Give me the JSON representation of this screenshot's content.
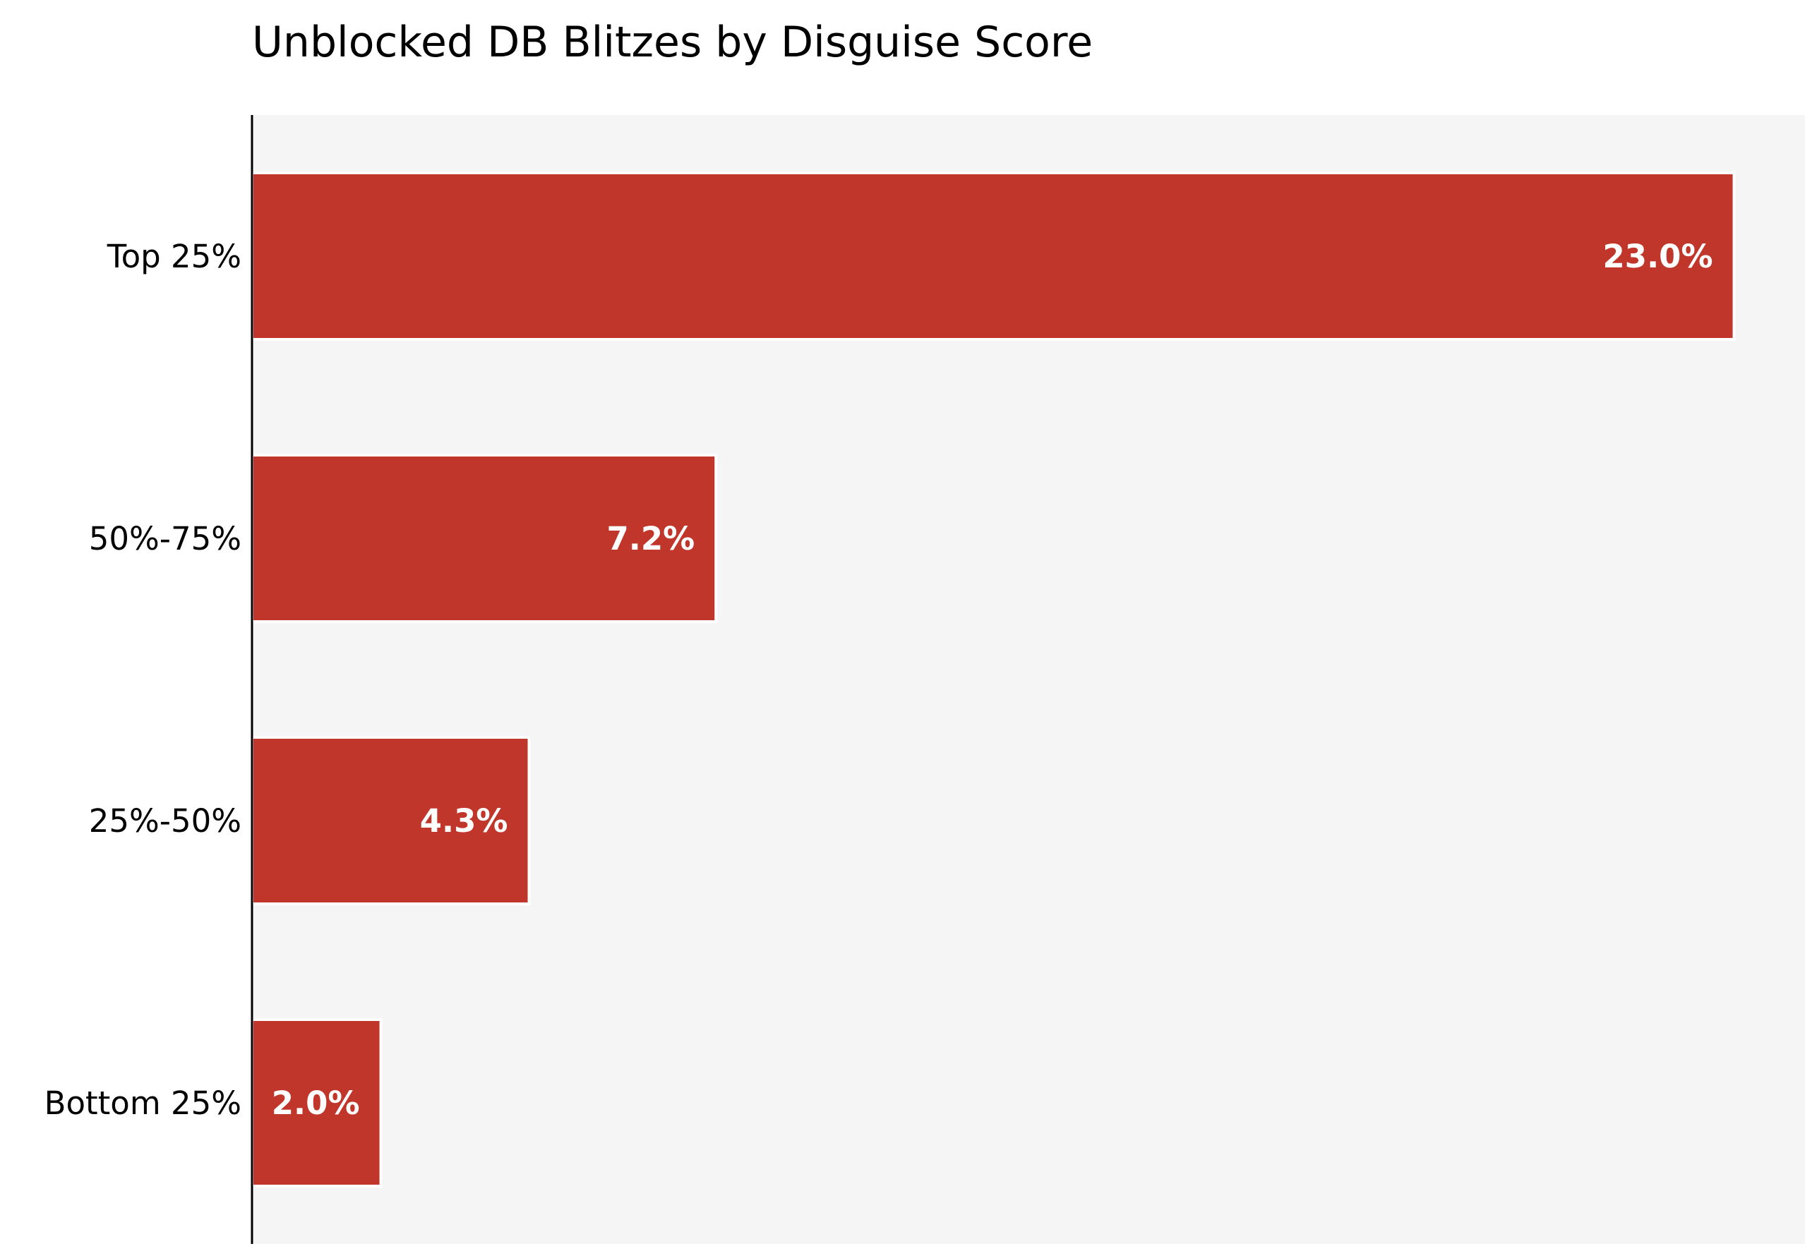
{
  "chart_data": {
    "type": "bar",
    "orientation": "horizontal",
    "title": "Unblocked DB Blitzes by Disguise Score",
    "xlabel": "",
    "ylabel": "",
    "categories": [
      "Top 25%",
      "50%-75%",
      "25%-50%",
      "Bottom 25%"
    ],
    "values": [
      23.0,
      7.2,
      4.3,
      2.0
    ],
    "value_labels": [
      "23.0%",
      "7.2%",
      "4.3%",
      "2.0%"
    ],
    "xlim": [
      0,
      24.1
    ],
    "grid": false,
    "legend": "none",
    "colors": {
      "bar": "#c0362a",
      "plot_background": "#f5f5f5",
      "axis": "#000000",
      "bar_edge": "#ffffff"
    }
  }
}
